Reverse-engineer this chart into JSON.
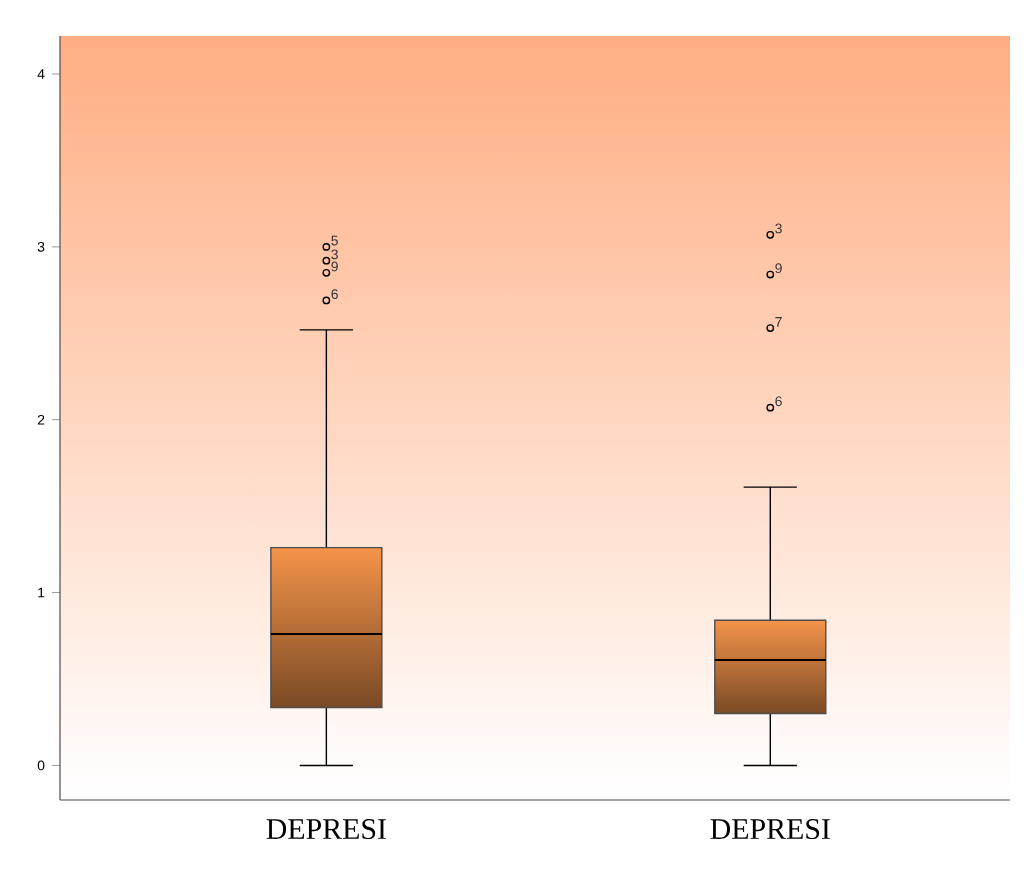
{
  "chart_data": {
    "type": "box",
    "categories": [
      "DEPRESI",
      "DEPRESI"
    ],
    "boxes": [
      {
        "low": 0,
        "q1": 0.335,
        "median": 0.76,
        "q3": 1.26,
        "high": 2.52,
        "outliers": [
          3.0,
          2.92,
          2.85,
          2.69
        ]
      },
      {
        "low": 0,
        "q1": 0.3,
        "median": 0.61,
        "q3": 0.84,
        "high": 1.61,
        "outliers": [
          3.07,
          2.84,
          2.53,
          2.07
        ]
      }
    ],
    "color": "#f5944a",
    "marker": "circle",
    "ylim": [
      -0.2,
      4.22
    ],
    "yticks": [
      0,
      1,
      2,
      3,
      4
    ],
    "annotations": [
      "5",
      "3",
      "9",
      "6",
      "3",
      "9",
      "7",
      "6"
    ]
  }
}
